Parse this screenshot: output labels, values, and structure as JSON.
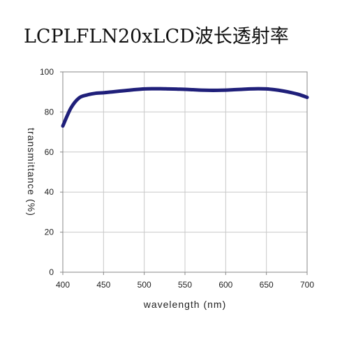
{
  "chart_data": {
    "type": "line",
    "title": "LCPLFLN20xLCD波长透射率",
    "xlabel": "wavelength (nm)",
    "ylabel": "transmittance (%)",
    "xlim": [
      400,
      700
    ],
    "ylim": [
      0,
      100
    ],
    "x_ticks": [
      400,
      450,
      500,
      550,
      600,
      650,
      700
    ],
    "y_ticks": [
      0,
      20,
      40,
      60,
      80,
      100
    ],
    "grid": true,
    "line_color": "#1f1f7a",
    "series": [
      {
        "x": [
          400,
          410,
          420,
          430,
          440,
          450,
          460,
          470,
          480,
          490,
          500,
          510,
          520,
          530,
          540,
          550,
          560,
          570,
          580,
          590,
          600,
          610,
          620,
          630,
          640,
          650,
          660,
          670,
          680,
          690,
          700
        ],
        "y": [
          73,
          82,
          87,
          88.5,
          89.3,
          89.6,
          90.0,
          90.4,
          90.8,
          91.2,
          91.5,
          91.6,
          91.6,
          91.5,
          91.4,
          91.3,
          91.1,
          90.9,
          90.8,
          90.8,
          90.9,
          91.1,
          91.3,
          91.5,
          91.6,
          91.5,
          91.1,
          90.5,
          89.7,
          88.7,
          87.3
        ]
      }
    ]
  }
}
